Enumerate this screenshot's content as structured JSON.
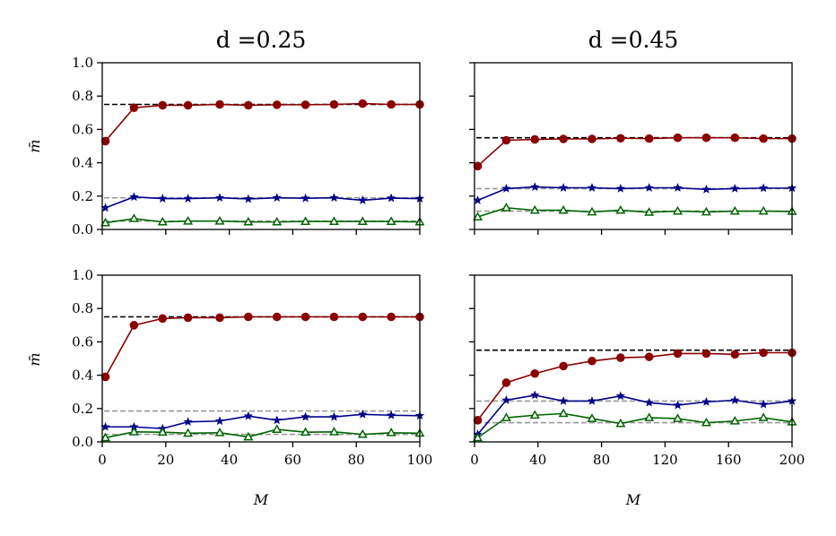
{
  "figure": {
    "ylabel": "m̄",
    "xlabel": "M",
    "column_titles": [
      "d =0.25",
      "d =0.45"
    ],
    "colors": {
      "red": "#8b0000",
      "blue": "#00008b",
      "green": "#006400",
      "ref_black": "#000000",
      "ref_gray": "#999999"
    }
  },
  "chart_data": [
    {
      "type": "line",
      "panel": "top-left",
      "title": "d =0.25",
      "xlabel": "",
      "ylabel": "m̄",
      "xlim": [
        0,
        100
      ],
      "ylim": [
        0,
        1
      ],
      "xticks": [
        0,
        20,
        40,
        60,
        80,
        100
      ],
      "xtick_labels": [],
      "yticks": [
        0,
        0.2,
        0.4,
        0.6,
        0.8,
        1.0
      ],
      "ytick_labels": [
        "0.0",
        "0.2",
        "0.4",
        "0.6",
        "0.8",
        "1.0"
      ],
      "x": [
        1,
        10,
        19,
        27,
        37,
        46,
        55,
        64,
        73,
        82,
        91,
        100
      ],
      "series": [
        {
          "name": "red",
          "marker": "circle",
          "values": [
            0.53,
            0.73,
            0.745,
            0.745,
            0.75,
            0.745,
            0.748,
            0.748,
            0.75,
            0.755,
            0.75,
            0.75
          ]
        },
        {
          "name": "blue",
          "marker": "star",
          "values": [
            0.13,
            0.195,
            0.185,
            0.185,
            0.19,
            0.183,
            0.19,
            0.187,
            0.19,
            0.175,
            0.188,
            0.185
          ]
        },
        {
          "name": "green",
          "marker": "triangle",
          "values": [
            0.04,
            0.065,
            0.045,
            0.05,
            0.05,
            0.045,
            0.045,
            0.048,
            0.048,
            0.048,
            0.048,
            0.045
          ]
        }
      ],
      "reference_lines": [
        {
          "color": "ref_black",
          "y": 0.75
        },
        {
          "color": "ref_gray",
          "y": 0.19
        },
        {
          "color": "ref_gray",
          "y": 0.05
        }
      ]
    },
    {
      "type": "line",
      "panel": "top-right",
      "title": "d =0.45",
      "xlabel": "",
      "ylabel": "",
      "xlim": [
        0,
        200
      ],
      "ylim": [
        0,
        1
      ],
      "xticks": [
        0,
        40,
        80,
        120,
        160,
        200
      ],
      "xtick_labels": [],
      "yticks": [
        0,
        0.2,
        0.4,
        0.6,
        0.8,
        1.0
      ],
      "ytick_labels": [],
      "x": [
        2,
        20,
        38,
        56,
        74,
        92,
        110,
        128,
        146,
        164,
        182,
        200
      ],
      "series": [
        {
          "name": "red",
          "marker": "circle",
          "values": [
            0.38,
            0.535,
            0.54,
            0.543,
            0.543,
            0.547,
            0.545,
            0.55,
            0.55,
            0.55,
            0.545,
            0.545
          ]
        },
        {
          "name": "blue",
          "marker": "star",
          "values": [
            0.175,
            0.245,
            0.255,
            0.25,
            0.25,
            0.245,
            0.25,
            0.25,
            0.24,
            0.245,
            0.248,
            0.248
          ]
        },
        {
          "name": "green",
          "marker": "triangle",
          "values": [
            0.075,
            0.13,
            0.115,
            0.115,
            0.105,
            0.115,
            0.103,
            0.11,
            0.105,
            0.11,
            0.11,
            0.108
          ]
        }
      ],
      "reference_lines": [
        {
          "color": "ref_black",
          "y": 0.55
        },
        {
          "color": "ref_gray",
          "y": 0.245
        },
        {
          "color": "ref_gray",
          "y": 0.11
        }
      ]
    },
    {
      "type": "line",
      "panel": "bottom-left",
      "title": "",
      "xlabel": "M",
      "ylabel": "m̄",
      "xlim": [
        0,
        100
      ],
      "ylim": [
        0,
        1
      ],
      "xticks": [
        0,
        20,
        40,
        60,
        80,
        100
      ],
      "xtick_labels": [
        "0",
        "20",
        "40",
        "60",
        "80",
        "100"
      ],
      "yticks": [
        0,
        0.2,
        0.4,
        0.6,
        0.8,
        1.0
      ],
      "ytick_labels": [
        "0.0",
        "0.2",
        "0.4",
        "0.6",
        "0.8",
        "1.0"
      ],
      "x": [
        1,
        10,
        19,
        27,
        37,
        46,
        55,
        64,
        73,
        82,
        91,
        100
      ],
      "series": [
        {
          "name": "red",
          "marker": "circle",
          "values": [
            0.39,
            0.7,
            0.74,
            0.745,
            0.745,
            0.75,
            0.75,
            0.75,
            0.75,
            0.75,
            0.75,
            0.75
          ]
        },
        {
          "name": "blue",
          "marker": "star",
          "values": [
            0.09,
            0.09,
            0.08,
            0.12,
            0.125,
            0.155,
            0.13,
            0.15,
            0.15,
            0.165,
            0.16,
            0.157
          ]
        },
        {
          "name": "green",
          "marker": "triangle",
          "values": [
            0.025,
            0.06,
            0.058,
            0.052,
            0.055,
            0.03,
            0.075,
            0.058,
            0.06,
            0.045,
            0.055,
            0.052
          ]
        }
      ],
      "reference_lines": [
        {
          "color": "ref_black",
          "y": 0.75
        },
        {
          "color": "ref_gray",
          "y": 0.185
        },
        {
          "color": "ref_gray",
          "y": 0.045
        }
      ]
    },
    {
      "type": "line",
      "panel": "bottom-right",
      "title": "",
      "xlabel": "M",
      "ylabel": "",
      "xlim": [
        0,
        200
      ],
      "ylim": [
        0,
        1
      ],
      "xticks": [
        0,
        40,
        80,
        120,
        160,
        200
      ],
      "xtick_labels": [
        "0",
        "40",
        "80",
        "120",
        "160",
        "200"
      ],
      "yticks": [
        0,
        0.2,
        0.4,
        0.6,
        0.8,
        1.0
      ],
      "ytick_labels": [],
      "x": [
        2,
        20,
        38,
        56,
        74,
        92,
        110,
        128,
        146,
        164,
        182,
        200
      ],
      "series": [
        {
          "name": "red",
          "marker": "circle",
          "values": [
            0.13,
            0.355,
            0.41,
            0.455,
            0.485,
            0.505,
            0.51,
            0.53,
            0.53,
            0.525,
            0.535,
            0.535
          ]
        },
        {
          "name": "blue",
          "marker": "star",
          "values": [
            0.045,
            0.25,
            0.28,
            0.245,
            0.245,
            0.275,
            0.235,
            0.22,
            0.24,
            0.25,
            0.225,
            0.245
          ]
        },
        {
          "name": "green",
          "marker": "triangle",
          "values": [
            0.025,
            0.145,
            0.16,
            0.17,
            0.14,
            0.11,
            0.145,
            0.14,
            0.115,
            0.125,
            0.145,
            0.12
          ]
        }
      ],
      "reference_lines": [
        {
          "color": "ref_black",
          "y": 0.55
        },
        {
          "color": "ref_gray",
          "y": 0.245
        },
        {
          "color": "ref_gray",
          "y": 0.115
        }
      ]
    }
  ]
}
